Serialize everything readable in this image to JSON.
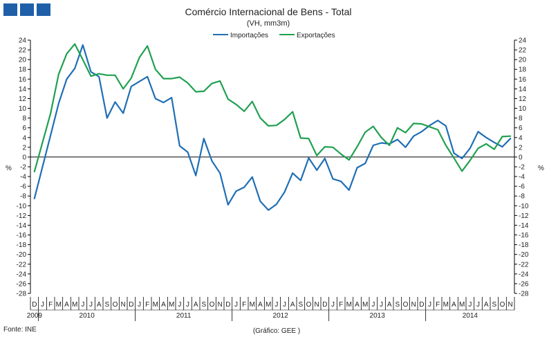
{
  "chart_data": {
    "type": "line",
    "title": "Comércio Internacional de Bens - Total",
    "subtitle": "(VH, mm3m)",
    "ylabel_left": "%",
    "ylabel_right": "%",
    "ylim": [
      -28,
      24
    ],
    "ystep": 2,
    "legend_position": "top-center",
    "grid": false,
    "source": "Fonte: INE",
    "credit": "(Gráfico: GEE )",
    "month_labels": [
      "D",
      "J",
      "F",
      "M",
      "A",
      "M",
      "J",
      "J",
      "A",
      "S",
      "O",
      "N",
      "D",
      "J",
      "F",
      "M",
      "A",
      "M",
      "J",
      "J",
      "A",
      "S",
      "O",
      "N",
      "D",
      "J",
      "F",
      "M",
      "A",
      "M",
      "J",
      "J",
      "A",
      "S",
      "O",
      "N",
      "D",
      "J",
      "F",
      "M",
      "A",
      "M",
      "J",
      "J",
      "A",
      "S",
      "O",
      "N",
      "D",
      "J",
      "F",
      "M",
      "A",
      "M",
      "J",
      "J",
      "A",
      "S",
      "O",
      "N"
    ],
    "years": [
      {
        "label": "2009",
        "start": 0,
        "count": 1
      },
      {
        "label": "2010",
        "start": 1,
        "count": 12
      },
      {
        "label": "2011",
        "start": 13,
        "count": 12
      },
      {
        "label": "2012",
        "start": 25,
        "count": 12
      },
      {
        "label": "2013",
        "start": 37,
        "count": 12
      },
      {
        "label": "2014",
        "start": 49,
        "count": 11
      }
    ],
    "series": [
      {
        "name": "Importações",
        "color": "#1f6eb5",
        "values": [
          -8.5,
          -2.0,
          4.5,
          11.0,
          16.0,
          18.2,
          23.0,
          17.5,
          16.5,
          8.0,
          11.3,
          9.0,
          14.5,
          15.5,
          16.5,
          12.0,
          11.2,
          12.2,
          2.3,
          1.0,
          -3.8,
          3.8,
          -0.8,
          -3.3,
          -9.8,
          -7.0,
          -6.2,
          -4.1,
          -9.1,
          -10.9,
          -9.7,
          -7.2,
          -3.3,
          -4.8,
          -0.2,
          -2.7,
          -0.3,
          -4.5,
          -5.0,
          -6.8,
          -2.2,
          -1.3,
          2.4,
          2.9,
          2.7,
          3.6,
          2.0,
          4.3,
          5.2,
          6.5,
          7.5,
          6.4,
          0.8,
          -0.3,
          1.8,
          5.2,
          4.0,
          3.0,
          2.1,
          3.8
        ]
      },
      {
        "name": "Exportações",
        "color": "#1fa050",
        "values": [
          -3.0,
          3.0,
          9.0,
          17.0,
          21.2,
          23.2,
          20.0,
          16.6,
          17.1,
          16.8,
          16.8,
          14.0,
          16.2,
          20.4,
          22.8,
          18.0,
          16.1,
          16.1,
          16.4,
          15.2,
          13.4,
          13.5,
          15.1,
          15.6,
          11.9,
          10.8,
          9.4,
          11.4,
          8.0,
          6.4,
          6.5,
          7.7,
          9.3,
          3.9,
          3.8,
          0.3,
          2.1,
          2.0,
          0.6,
          -0.6,
          2.1,
          5.1,
          6.3,
          4.0,
          2.4,
          6.0,
          5.0,
          6.9,
          6.8,
          6.2,
          5.6,
          2.4,
          -0.2,
          -2.9,
          -0.7,
          1.8,
          2.7,
          1.6,
          4.2,
          4.3
        ]
      }
    ]
  }
}
